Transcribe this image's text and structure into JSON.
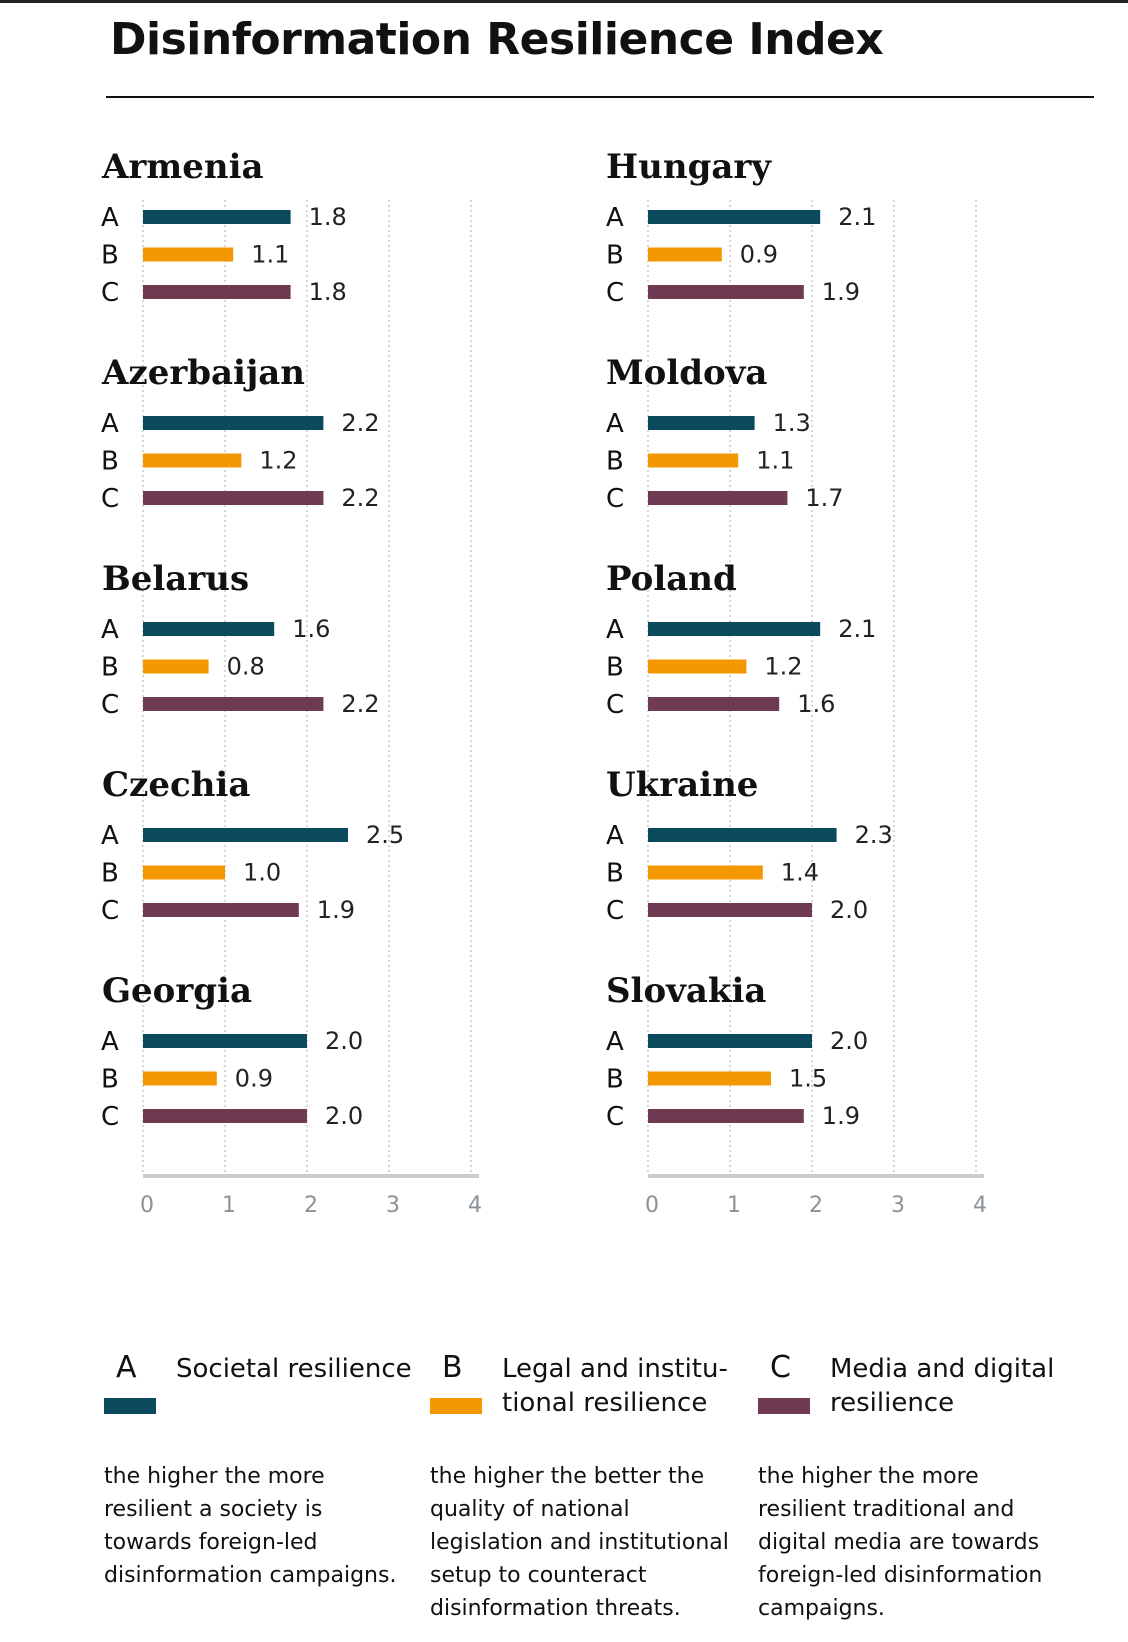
{
  "title": "Disinformation Resilience Index",
  "colors": {
    "A": "#0b4a5c",
    "B": "#f39800",
    "C": "#6e3b52",
    "grid": "#bbbbbb",
    "axis": "#cccccc"
  },
  "chart_data": {
    "type": "bar",
    "orientation": "horizontal",
    "title": "Disinformation Resilience Index",
    "series_keys": [
      "A",
      "B",
      "C"
    ],
    "xlim": [
      0,
      4
    ],
    "xticks": [
      "0",
      "1",
      "2",
      "3",
      "4"
    ],
    "columns": [
      [
        {
          "name": "Armenia",
          "values": [
            1.8,
            1.1,
            1.8
          ],
          "labels": [
            "1.8",
            "1.1",
            "1.8"
          ]
        },
        {
          "name": "Azerbaijan",
          "values": [
            2.2,
            1.2,
            2.2
          ],
          "labels": [
            "2.2",
            "1.2",
            "2.2"
          ]
        },
        {
          "name": "Belarus",
          "values": [
            1.6,
            0.8,
            2.2
          ],
          "labels": [
            "1.6",
            "0.8",
            "2.2"
          ]
        },
        {
          "name": "Czechia",
          "values": [
            2.5,
            1.0,
            1.9
          ],
          "labels": [
            "2.5",
            "1.0",
            "1.9"
          ]
        },
        {
          "name": "Georgia",
          "values": [
            2.0,
            0.9,
            2.0
          ],
          "labels": [
            "2.0",
            "0.9",
            "2.0"
          ]
        }
      ],
      [
        {
          "name": "Hungary",
          "values": [
            2.1,
            0.9,
            1.9
          ],
          "labels": [
            "2.1",
            "0.9",
            "1.9"
          ]
        },
        {
          "name": "Moldova",
          "values": [
            1.3,
            1.1,
            1.7
          ],
          "labels": [
            "1.3",
            "1.1",
            "1.7"
          ]
        },
        {
          "name": "Poland",
          "values": [
            2.1,
            1.2,
            1.6
          ],
          "labels": [
            "2.1",
            "1.2",
            "1.6"
          ]
        },
        {
          "name": "Ukraine",
          "values": [
            2.3,
            1.4,
            2.0
          ],
          "labels": [
            "2.3",
            "1.4",
            "2.0"
          ]
        },
        {
          "name": "Slovakia",
          "values": [
            2.0,
            1.5,
            1.9
          ],
          "labels": [
            "2.0",
            "1.5",
            "1.9"
          ]
        }
      ]
    ]
  },
  "legend": [
    {
      "letter": "A",
      "name": "Societal resilience",
      "desc": "the higher the more resilient a society is towards foreign-led disinformation campaigns."
    },
    {
      "letter": "B",
      "name": "Legal and institu- tional resilience",
      "desc": "the higher the better the quality of national legislation and institutional setup to counteract disinformation threats."
    },
    {
      "letter": "C",
      "name": "Media and digital resilience",
      "desc": "the higher the more resilient traditional and digital media are towards foreign-led disinformation campaigns."
    }
  ]
}
